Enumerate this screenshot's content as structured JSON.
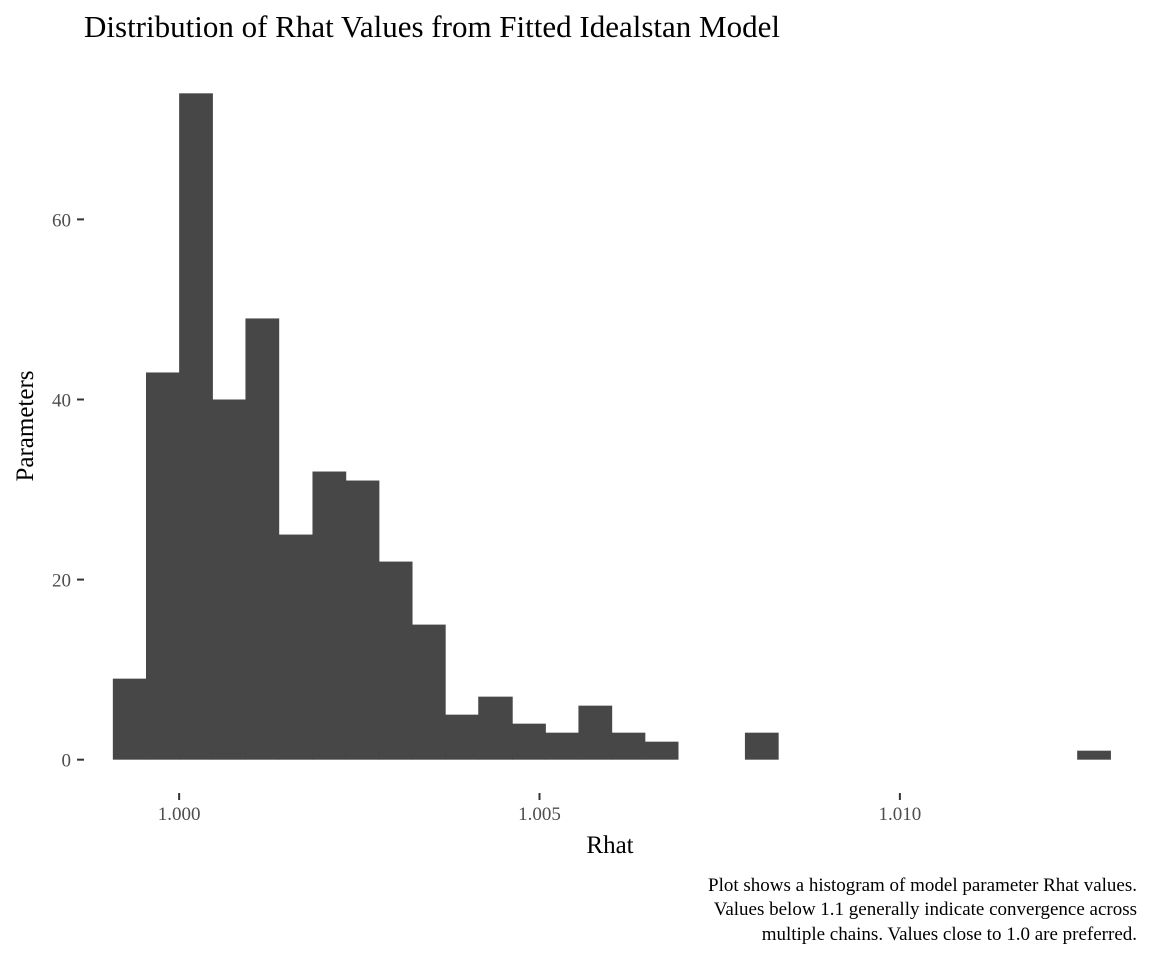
{
  "chart_data": {
    "type": "bar",
    "title": "Distribution of Rhat Values from Fitted Idealstan Model",
    "xlabel": "Rhat",
    "ylabel": "Parameters",
    "caption": [
      "Plot shows a histogram of model parameter Rhat values.",
      "Values below 1.1 generally indicate convergence across",
      "multiple chains. Values close to 1.0 are preferred."
    ],
    "xlim": [
      0.99868,
      1.01329
    ],
    "ylim": [
      -3.7,
      77.7
    ],
    "x_ticks": [
      {
        "value": 1.0,
        "label": "1.000"
      },
      {
        "value": 1.005,
        "label": "1.005"
      },
      {
        "value": 1.01,
        "label": "1.010"
      }
    ],
    "y_ticks": [
      {
        "value": 0,
        "label": "0"
      },
      {
        "value": 20,
        "label": "20"
      },
      {
        "value": 40,
        "label": "40"
      },
      {
        "value": 60,
        "label": "60"
      }
    ],
    "grid": false,
    "bars": [
      {
        "x0": 0.99908,
        "x1": 0.99954,
        "count": 9
      },
      {
        "x0": 0.99954,
        "x1": 1.0,
        "count": 43
      },
      {
        "x0": 1.0,
        "x1": 1.00046,
        "count": 74
      },
      {
        "x0": 1.00046,
        "x1": 1.00092,
        "count": 40
      },
      {
        "x0": 1.00092,
        "x1": 1.00138,
        "count": 49
      },
      {
        "x0": 1.00138,
        "x1": 1.00185,
        "count": 25
      },
      {
        "x0": 1.00185,
        "x1": 1.00231,
        "count": 32
      },
      {
        "x0": 1.00231,
        "x1": 1.00277,
        "count": 31
      },
      {
        "x0": 1.00277,
        "x1": 1.00323,
        "count": 22
      },
      {
        "x0": 1.00323,
        "x1": 1.00369,
        "count": 15
      },
      {
        "x0": 1.00369,
        "x1": 1.00415,
        "count": 5
      },
      {
        "x0": 1.00415,
        "x1": 1.00462,
        "count": 7
      },
      {
        "x0": 1.00462,
        "x1": 1.00508,
        "count": 4
      },
      {
        "x0": 1.00508,
        "x1": 1.00554,
        "count": 3
      },
      {
        "x0": 1.00554,
        "x1": 1.006,
        "count": 6
      },
      {
        "x0": 1.006,
        "x1": 1.00646,
        "count": 3
      },
      {
        "x0": 1.00646,
        "x1": 1.00692,
        "count": 2
      },
      {
        "x0": 1.00785,
        "x1": 1.00831,
        "count": 3
      },
      {
        "x0": 1.01246,
        "x1": 1.01292,
        "count": 1
      }
    ],
    "bar_color": "#474747"
  }
}
